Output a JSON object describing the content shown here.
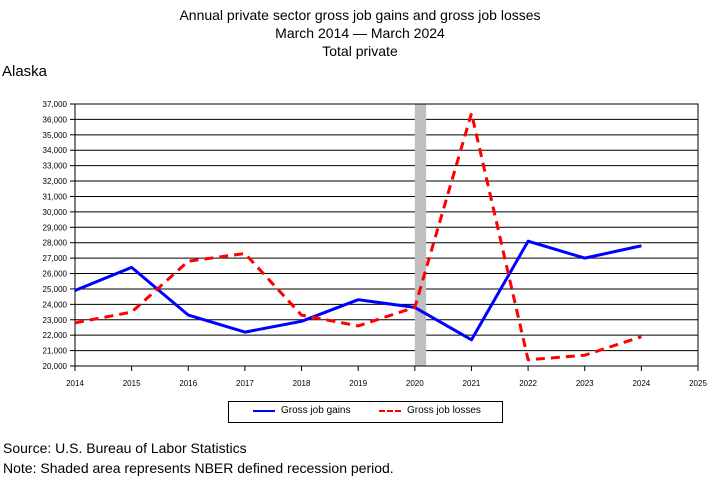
{
  "title": {
    "line1": "Annual private sector gross job gains and gross job losses",
    "line2": "March 2014 — March 2024",
    "line3": "Total private"
  },
  "region": "Alaska",
  "footer": {
    "source": "Source: U.S. Bureau of Labor Statistics",
    "note": "Note: Shaded area represents NBER defined recession period."
  },
  "chart_data": {
    "type": "line",
    "x": [
      2014,
      2015,
      2016,
      2017,
      2018,
      2019,
      2020,
      2021,
      2022,
      2023,
      2024
    ],
    "xlim": [
      2014,
      2025
    ],
    "x_ticks": [
      "2014",
      "2015",
      "2016",
      "2017",
      "2018",
      "2019",
      "2020",
      "2021",
      "2022",
      "2023",
      "2024",
      "2025"
    ],
    "ylim": [
      20000,
      37000
    ],
    "y_ticks": [
      "20,000",
      "21,000",
      "22,000",
      "23,000",
      "24,000",
      "25,000",
      "26,000",
      "27,000",
      "28,000",
      "29,000",
      "30,000",
      "31,000",
      "32,000",
      "33,000",
      "34,000",
      "35,000",
      "36,000",
      "37,000"
    ],
    "grid": true,
    "recession": [
      2020,
      2020.2
    ],
    "legend_position": "bottom",
    "series": [
      {
        "name": "Gross job gains",
        "color": "#0000ff",
        "dash": "solid",
        "values": [
          24900,
          26400,
          23300,
          22200,
          22900,
          24300,
          23800,
          21700,
          28100,
          27000,
          27800
        ]
      },
      {
        "name": "Gross job losses",
        "color": "#ff0000",
        "dash": "dashed",
        "values": [
          22800,
          23500,
          26800,
          27300,
          23300,
          22600,
          23800,
          36400,
          20400,
          20700,
          21900
        ]
      }
    ]
  }
}
